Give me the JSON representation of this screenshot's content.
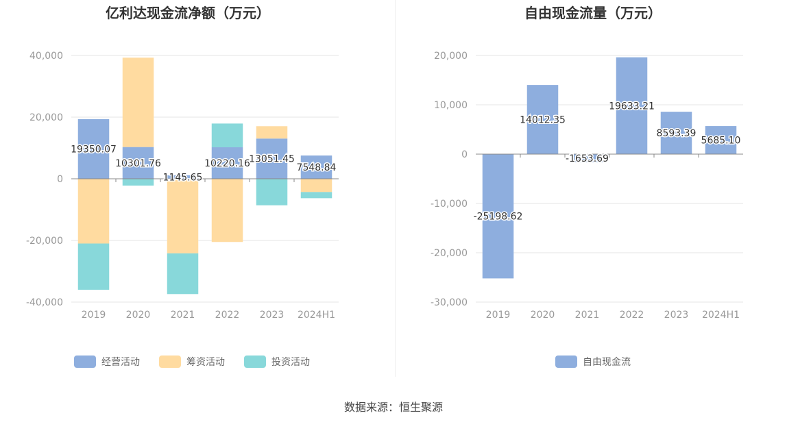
{
  "source": "数据来源：恒生聚源",
  "chart_data": [
    {
      "type": "bar",
      "stacked": true,
      "title": "亿利达现金流净额（万元）",
      "categories": [
        "2019",
        "2020",
        "2021",
        "2022",
        "2023",
        "2024H1"
      ],
      "ylim": [
        -40000,
        40000
      ],
      "yticks": [
        40000,
        20000,
        0,
        -20000,
        -40000
      ],
      "ytick_labels": [
        "40,000",
        "20,000",
        "0",
        "-20,000",
        "-40,000"
      ],
      "grid": true,
      "legend": "bottom",
      "series": [
        {
          "name": "经营活动",
          "color": "#8eaede",
          "values": [
            19350.07,
            10301.76,
            1145.65,
            10220.16,
            13051.45,
            7548.84
          ]
        },
        {
          "name": "筹资活动",
          "color": "#ffdba0",
          "values": [
            -21000,
            29000,
            -24200,
            -20500,
            4000,
            -4300
          ]
        },
        {
          "name": "投资活动",
          "color": "#88d8da",
          "values": [
            -15000,
            -2200,
            -13200,
            7700,
            -8600,
            -2000
          ]
        }
      ],
      "data_labels": [
        "19350.07",
        "10301.76",
        "1145.65",
        "10220.16",
        "13051.45",
        "7548.84"
      ]
    },
    {
      "type": "bar",
      "title": "自由现金流量（万元）",
      "categories": [
        "2019",
        "2020",
        "2021",
        "2022",
        "2023",
        "2024H1"
      ],
      "ylim": [
        -30000,
        20000
      ],
      "yticks": [
        20000,
        10000,
        0,
        -10000,
        -20000,
        -30000
      ],
      "ytick_labels": [
        "20,000",
        "10,000",
        "0",
        "-10,000",
        "-20,000",
        "-30,000"
      ],
      "grid": true,
      "legend": "bottom",
      "series": [
        {
          "name": "自由现金流",
          "color": "#8eaede",
          "values": [
            -25198.62,
            14012.35,
            -1653.69,
            19633.21,
            8593.39,
            5685.1
          ]
        }
      ],
      "data_labels": [
        "-25198.62",
        "14012.35",
        "-1653.69",
        "19633.21",
        "8593.39",
        "5685.10"
      ]
    }
  ]
}
